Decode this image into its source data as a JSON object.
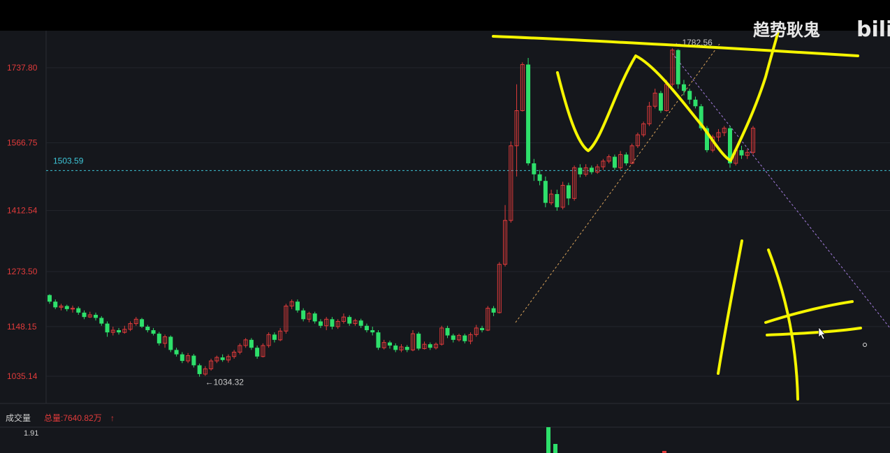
{
  "watermark": {
    "text": "趋势耿鬼",
    "logo": "bili"
  },
  "chart_data": {
    "type": "candlestick",
    "y_ticks": [
      "1737.80",
      "1566.75",
      "1412.54",
      "1273.50",
      "1148.15",
      "1035.14"
    ],
    "ylim": [
      1000,
      1800
    ],
    "reference_line": {
      "value": 1503.59,
      "label": "1503.59"
    },
    "annotations": [
      {
        "text": "←1782.56",
        "value": 1782.56
      },
      {
        "text": "←1034.32",
        "value": 1034.32
      }
    ],
    "colors": {
      "up": "#e23b3b",
      "down": "#2ee06b",
      "reference": "#3ec6d8",
      "grid": "#23262d",
      "highlighter": "#f5f500"
    },
    "candles": [
      [
        1220,
        1205,
        1222,
        1200
      ],
      [
        1205,
        1192,
        1210,
        1188
      ],
      [
        1192,
        1195,
        1200,
        1185
      ],
      [
        1195,
        1188,
        1198,
        1183
      ],
      [
        1188,
        1190,
        1196,
        1180
      ],
      [
        1190,
        1180,
        1194,
        1175
      ],
      [
        1180,
        1170,
        1185,
        1165
      ],
      [
        1170,
        1175,
        1182,
        1168
      ],
      [
        1175,
        1168,
        1180,
        1162
      ],
      [
        1168,
        1155,
        1172,
        1150
      ],
      [
        1155,
        1135,
        1160,
        1125
      ],
      [
        1135,
        1140,
        1148,
        1128
      ],
      [
        1140,
        1135,
        1145,
        1130
      ],
      [
        1135,
        1142,
        1150,
        1132
      ],
      [
        1142,
        1155,
        1160,
        1138
      ],
      [
        1155,
        1165,
        1170,
        1150
      ],
      [
        1165,
        1148,
        1168,
        1145
      ],
      [
        1148,
        1140,
        1152,
        1135
      ],
      [
        1140,
        1132,
        1145,
        1128
      ],
      [
        1132,
        1110,
        1136,
        1105
      ],
      [
        1110,
        1125,
        1130,
        1100
      ],
      [
        1125,
        1095,
        1128,
        1090
      ],
      [
        1095,
        1085,
        1100,
        1080
      ],
      [
        1085,
        1070,
        1090,
        1065
      ],
      [
        1070,
        1082,
        1088,
        1065
      ],
      [
        1082,
        1060,
        1086,
        1055
      ],
      [
        1060,
        1040,
        1064,
        1034
      ],
      [
        1040,
        1052,
        1058,
        1036
      ],
      [
        1052,
        1070,
        1075,
        1048
      ],
      [
        1070,
        1078,
        1082,
        1065
      ],
      [
        1078,
        1072,
        1085,
        1068
      ],
      [
        1072,
        1080,
        1085,
        1066
      ],
      [
        1080,
        1090,
        1095,
        1075
      ],
      [
        1090,
        1105,
        1110,
        1085
      ],
      [
        1105,
        1118,
        1122,
        1100
      ],
      [
        1118,
        1100,
        1122,
        1095
      ],
      [
        1100,
        1080,
        1105,
        1075
      ],
      [
        1080,
        1105,
        1110,
        1078
      ],
      [
        1105,
        1130,
        1135,
        1100
      ],
      [
        1130,
        1118,
        1135,
        1112
      ],
      [
        1118,
        1138,
        1145,
        1115
      ],
      [
        1138,
        1195,
        1200,
        1132
      ],
      [
        1195,
        1205,
        1210,
        1188
      ],
      [
        1205,
        1185,
        1210,
        1180
      ],
      [
        1185,
        1165,
        1190,
        1160
      ],
      [
        1165,
        1178,
        1182,
        1158
      ],
      [
        1178,
        1160,
        1182,
        1155
      ],
      [
        1160,
        1150,
        1165,
        1145
      ],
      [
        1150,
        1165,
        1170,
        1140
      ],
      [
        1165,
        1148,
        1170,
        1142
      ],
      [
        1148,
        1160,
        1165,
        1143
      ],
      [
        1160,
        1170,
        1178,
        1155
      ],
      [
        1170,
        1155,
        1174,
        1150
      ],
      [
        1155,
        1162,
        1166,
        1150
      ],
      [
        1162,
        1150,
        1166,
        1145
      ],
      [
        1150,
        1140,
        1155,
        1135
      ],
      [
        1140,
        1135,
        1148,
        1128
      ],
      [
        1135,
        1100,
        1140,
        1095
      ],
      [
        1100,
        1112,
        1118,
        1096
      ],
      [
        1112,
        1105,
        1116,
        1098
      ],
      [
        1105,
        1095,
        1110,
        1090
      ],
      [
        1095,
        1102,
        1108,
        1090
      ],
      [
        1102,
        1095,
        1106,
        1090
      ],
      [
        1095,
        1132,
        1140,
        1092
      ],
      [
        1132,
        1098,
        1136,
        1094
      ],
      [
        1098,
        1108,
        1114,
        1096
      ],
      [
        1108,
        1100,
        1112,
        1095
      ],
      [
        1100,
        1108,
        1112,
        1096
      ],
      [
        1108,
        1145,
        1150,
        1105
      ],
      [
        1145,
        1128,
        1150,
        1122
      ],
      [
        1128,
        1118,
        1132,
        1112
      ],
      [
        1118,
        1128,
        1132,
        1114
      ],
      [
        1128,
        1115,
        1132,
        1110
      ],
      [
        1115,
        1130,
        1135,
        1108
      ],
      [
        1130,
        1145,
        1152,
        1125
      ],
      [
        1145,
        1140,
        1150,
        1135
      ],
      [
        1140,
        1190,
        1195,
        1138
      ],
      [
        1190,
        1180,
        1195,
        1172
      ],
      [
        1180,
        1290,
        1295,
        1178
      ],
      [
        1290,
        1390,
        1425,
        1285
      ],
      [
        1390,
        1560,
        1570,
        1385
      ],
      [
        1560,
        1640,
        1700,
        1490
      ],
      [
        1640,
        1745,
        1750,
        1638
      ],
      [
        1745,
        1520,
        1760,
        1515
      ],
      [
        1520,
        1495,
        1530,
        1480
      ],
      [
        1495,
        1480,
        1505,
        1470
      ],
      [
        1480,
        1430,
        1490,
        1420
      ],
      [
        1430,
        1450,
        1460,
        1425
      ],
      [
        1450,
        1420,
        1460,
        1412
      ],
      [
        1420,
        1470,
        1478,
        1415
      ],
      [
        1470,
        1440,
        1476,
        1425
      ],
      [
        1440,
        1510,
        1515,
        1435
      ],
      [
        1510,
        1495,
        1518,
        1488
      ],
      [
        1495,
        1510,
        1518,
        1490
      ],
      [
        1510,
        1500,
        1515,
        1495
      ],
      [
        1500,
        1512,
        1518,
        1496
      ],
      [
        1512,
        1525,
        1530,
        1505
      ],
      [
        1525,
        1535,
        1540,
        1520
      ],
      [
        1535,
        1510,
        1540,
        1505
      ],
      [
        1510,
        1540,
        1548,
        1505
      ],
      [
        1540,
        1520,
        1545,
        1515
      ],
      [
        1520,
        1560,
        1565,
        1518
      ],
      [
        1560,
        1585,
        1590,
        1555
      ],
      [
        1585,
        1610,
        1615,
        1580
      ],
      [
        1610,
        1650,
        1660,
        1605
      ],
      [
        1650,
        1680,
        1690,
        1645
      ],
      [
        1680,
        1640,
        1685,
        1635
      ],
      [
        1640,
        1700,
        1710,
        1638
      ],
      [
        1700,
        1778,
        1782,
        1695
      ],
      [
        1778,
        1700,
        1780,
        1690
      ],
      [
        1700,
        1685,
        1710,
        1675
      ],
      [
        1685,
        1665,
        1690,
        1655
      ],
      [
        1665,
        1650,
        1672,
        1645
      ],
      [
        1650,
        1600,
        1655,
        1595
      ],
      [
        1600,
        1550,
        1605,
        1545
      ],
      [
        1550,
        1580,
        1585,
        1545
      ],
      [
        1580,
        1590,
        1598,
        1570
      ],
      [
        1590,
        1600,
        1605,
        1582
      ],
      [
        1600,
        1520,
        1605,
        1510
      ],
      [
        1520,
        1550,
        1556,
        1515
      ],
      [
        1550,
        1538,
        1560,
        1530
      ],
      [
        1538,
        1545,
        1552,
        1530
      ],
      [
        1545,
        1600,
        1605,
        1540
      ]
    ],
    "volume": {
      "title": "成交量",
      "total_label": "总量:7640.82万",
      "arrow": "↑",
      "y_ticks": [
        "1.91"
      ]
    }
  }
}
